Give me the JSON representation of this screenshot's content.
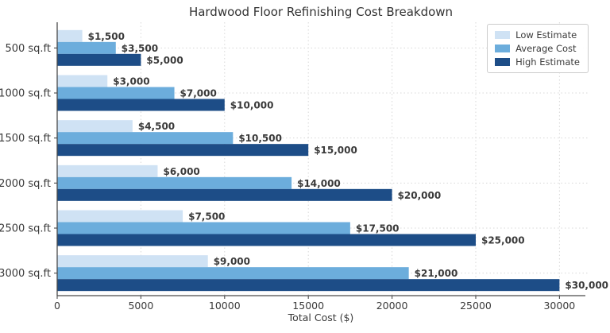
{
  "chart_data": {
    "type": "bar",
    "orientation": "horizontal",
    "title": "Hardwood Floor Refinishing Cost Breakdown",
    "xlabel": "Total Cost ($)",
    "ylabel": "",
    "categories": [
      "500 sq.ft",
      "1000 sq.ft",
      "1500 sq.ft",
      "2000 sq.ft",
      "2500 sq.ft",
      "3000 sq.ft"
    ],
    "series": [
      {
        "name": "Low Estimate",
        "color": "#cfe2f4",
        "values": [
          1500,
          3000,
          4500,
          6000,
          7500,
          9000
        ],
        "labels": [
          "$1,500",
          "$3,000",
          "$4,500",
          "$6,000",
          "$7,500",
          "$9,000"
        ]
      },
      {
        "name": "Average Cost",
        "color": "#6caddc",
        "values": [
          3500,
          7000,
          10500,
          14000,
          17500,
          21000
        ],
        "labels": [
          "$3,500",
          "$7,000",
          "$10,500",
          "$14,000",
          "$17,500",
          "$21,000"
        ]
      },
      {
        "name": "High Estimate",
        "color": "#1d4d87",
        "values": [
          5000,
          10000,
          15000,
          20000,
          25000,
          30000
        ],
        "labels": [
          "$5,000",
          "$10,000",
          "$15,000",
          "$20,000",
          "$25,000",
          "$30,000"
        ]
      }
    ],
    "xlim": [
      0,
      31500
    ],
    "xticks": [
      0,
      5000,
      10000,
      15000,
      20000,
      25000,
      30000
    ],
    "xtick_labels": [
      "0",
      "5000",
      "10000",
      "15000",
      "20000",
      "25000",
      "30000"
    ],
    "grid": true,
    "grid_style": "dotted",
    "legend_position": "upper right",
    "style_colors": {
      "grid": "#d8d8d8",
      "spine": "#4a4a4a",
      "tick_text": "#3a3a3a",
      "value_text": "#3a3a3a",
      "background": "#ffffff"
    }
  }
}
